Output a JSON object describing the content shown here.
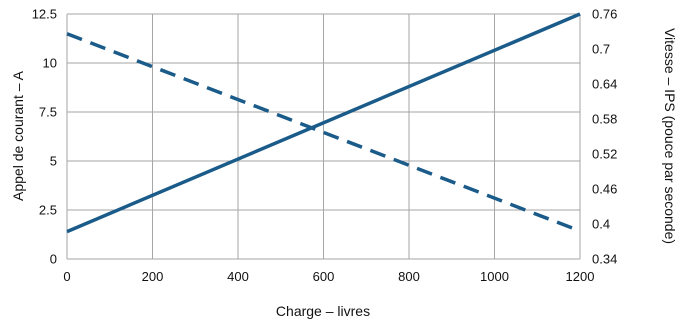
{
  "chart_data": {
    "type": "line",
    "title": "",
    "xlabel": "Charge – livres",
    "ylabel": "Appel de courant – A",
    "y2label": "Vitesse – IPS (pouce par seconde)",
    "xlim": [
      0,
      1200
    ],
    "ylim": [
      0,
      12.5
    ],
    "y2lim": [
      0.34,
      0.76
    ],
    "x_ticks": [
      "0",
      "200",
      "400",
      "600",
      "800",
      "1000",
      "1200"
    ],
    "y_ticks": [
      "0",
      "2.5",
      "5",
      "7.5",
      "10",
      "12.5"
    ],
    "y2_ticks": [
      "0.34",
      "0.4",
      "0.46",
      "0.52",
      "0.58",
      "0.64",
      "0.7",
      "0.76"
    ],
    "grid": true,
    "legend": "none",
    "series": [
      {
        "axis": "left",
        "style": "solid",
        "color": "#1a5b8a",
        "x": [
          0,
          1200
        ],
        "y": [
          1.4,
          12.5
        ]
      },
      {
        "axis": "right",
        "style": "dashed",
        "color": "#1a5b8a",
        "x": [
          0,
          1200
        ],
        "y": [
          0.726,
          0.388
        ]
      }
    ]
  }
}
